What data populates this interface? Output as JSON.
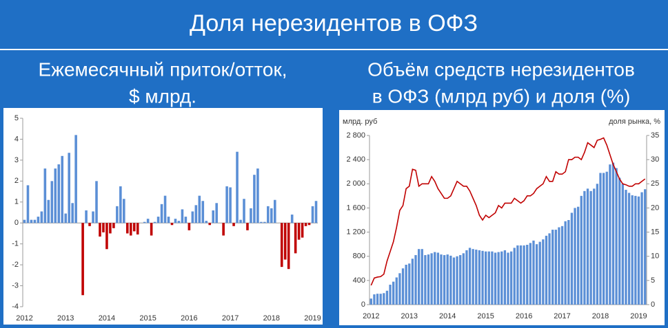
{
  "header": {
    "title": "Доля нерезидентов в ОФЗ"
  },
  "chart_data": [
    {
      "type": "bar",
      "title": [
        "Ежемесячный приток/отток,",
        "$ млрд."
      ],
      "categories": [
        "2012",
        null,
        null,
        null,
        null,
        null,
        null,
        null,
        null,
        null,
        null,
        null,
        "2013",
        null,
        null,
        null,
        null,
        null,
        null,
        null,
        null,
        null,
        null,
        null,
        "2014",
        null,
        null,
        null,
        null,
        null,
        null,
        null,
        null,
        null,
        null,
        null,
        "2015",
        null,
        null,
        null,
        null,
        null,
        null,
        null,
        null,
        null,
        null,
        null,
        "2016",
        null,
        null,
        null,
        null,
        null,
        null,
        null,
        null,
        null,
        null,
        null,
        "2017",
        null,
        null,
        null,
        null,
        null,
        null,
        null,
        null,
        null,
        null,
        null,
        "2018",
        null,
        null,
        null,
        null,
        null,
        null,
        null,
        null,
        null,
        null,
        null,
        "2019",
        null
      ],
      "values": [
        0.15,
        1.8,
        0.15,
        0.15,
        0.3,
        0.55,
        2.6,
        1.1,
        2.0,
        2.6,
        2.8,
        3.2,
        0.45,
        3.35,
        0.95,
        4.2,
        0,
        -3.45,
        0.6,
        -0.15,
        0.55,
        2.0,
        -0.65,
        -0.45,
        -1.25,
        -0.5,
        -0.25,
        0.8,
        1.75,
        1.15,
        -0.5,
        -0.6,
        -0.4,
        -0.55,
        0,
        0.05,
        0.2,
        -0.6,
        0.05,
        0.3,
        0.9,
        1.3,
        0.3,
        -0.1,
        0.2,
        0.1,
        0.65,
        0.3,
        -0.35,
        0.55,
        0.85,
        1.3,
        1.05,
        0.1,
        -0.1,
        0.6,
        0.95,
        0,
        -0.6,
        1.75,
        1.7,
        -0.15,
        3.4,
        0.15,
        1.15,
        -0.35,
        0.7,
        2.3,
        2.6,
        0.05,
        0.05,
        0.8,
        0.7,
        1.1,
        0,
        -2.1,
        -1.75,
        -2.2,
        0.4,
        -1.45,
        -0.8,
        -0.7,
        -0.15,
        -0.1,
        0.8,
        1.05
      ],
      "positive_color": "#5b8fd6",
      "negative_color": "#c00000",
      "ylim": [
        -4,
        5
      ],
      "yticks": [
        -4,
        -3,
        -2,
        -1,
        0,
        1,
        2,
        3,
        4,
        5
      ],
      "grid": false
    },
    {
      "type": "bar",
      "title": [
        "Объём средств нерезидентов",
        "в ОФЗ (млрд руб) и доля (%)"
      ],
      "y_label": "млрд. руб",
      "y2_label": "доля рынка, %",
      "categories": [
        "2012",
        null,
        null,
        null,
        null,
        null,
        null,
        null,
        null,
        null,
        null,
        null,
        "2013",
        null,
        null,
        null,
        null,
        null,
        null,
        null,
        null,
        null,
        null,
        null,
        "2014",
        null,
        null,
        null,
        null,
        null,
        null,
        null,
        null,
        null,
        null,
        null,
        "2015",
        null,
        null,
        null,
        null,
        null,
        null,
        null,
        null,
        null,
        null,
        null,
        "2016",
        null,
        null,
        null,
        null,
        null,
        null,
        null,
        null,
        null,
        null,
        null,
        "2017",
        null,
        null,
        null,
        null,
        null,
        null,
        null,
        null,
        null,
        null,
        null,
        "2018",
        null,
        null,
        null,
        null,
        null,
        null,
        null,
        null,
        null,
        null,
        null,
        "2019",
        null,
        null
      ],
      "series": [
        {
          "type": "bar",
          "axis": "y",
          "color": "#5b8fd6",
          "values": [
            100,
            170,
            180,
            180,
            190,
            230,
            330,
            380,
            450,
            520,
            600,
            660,
            680,
            760,
            820,
            920,
            920,
            820,
            830,
            850,
            870,
            860,
            830,
            820,
            830,
            810,
            780,
            800,
            820,
            850,
            900,
            940,
            920,
            910,
            900,
            890,
            880,
            880,
            880,
            860,
            870,
            880,
            900,
            860,
            880,
            940,
            980,
            980,
            980,
            990,
            1020,
            1060,
            1000,
            1040,
            1080,
            1140,
            1180,
            1240,
            1240,
            1280,
            1300,
            1380,
            1400,
            1520,
            1600,
            1620,
            1800,
            1880,
            1920,
            1880,
            1920,
            2000,
            2180,
            2180,
            2200,
            2320,
            2350,
            2260,
            2100,
            2000,
            1900,
            1850,
            1810,
            1800,
            1790,
            1860,
            1910
          ]
        },
        {
          "type": "line",
          "axis": "y2",
          "color": "#c00000",
          "values": [
            4,
            5.5,
            5.7,
            5.8,
            6.3,
            9,
            11,
            13,
            16,
            19.5,
            20.5,
            24,
            24.5,
            28,
            27.8,
            24.5,
            25,
            25,
            25,
            26.5,
            25.5,
            24,
            23,
            22,
            22,
            22.5,
            24,
            25.5,
            25,
            24.5,
            24.5,
            23.5,
            22,
            20.5,
            18.5,
            17.5,
            18.5,
            18,
            18.5,
            19,
            20.5,
            20,
            21,
            21,
            21,
            22,
            21.5,
            21,
            21.5,
            22.5,
            22.5,
            23,
            24,
            24.5,
            25,
            26.5,
            25.5,
            25.5,
            27.5,
            27,
            27,
            27.5,
            30,
            30,
            30.5,
            30.5,
            30,
            31.5,
            33.5,
            33,
            32.5,
            34,
            34.2,
            34.5,
            33,
            31,
            29,
            27.5,
            26,
            25,
            24.8,
            24.5,
            24.5,
            25,
            25,
            25.5,
            26
          ]
        }
      ],
      "ylim": [
        0,
        2800
      ],
      "yticks": [
        0,
        400,
        800,
        {
          "value": 1200,
          "label": "1 200"
        },
        {
          "value": 1600,
          "label": "1 600"
        },
        {
          "value": 2000,
          "label": "2 000"
        },
        {
          "value": 2400,
          "label": "2 400"
        },
        {
          "value": 2800,
          "label": "2 800"
        }
      ],
      "y2lim": [
        0,
        35
      ],
      "y2ticks": [
        0,
        5,
        10,
        15,
        20,
        25,
        30,
        35
      ],
      "grid": false
    }
  ]
}
